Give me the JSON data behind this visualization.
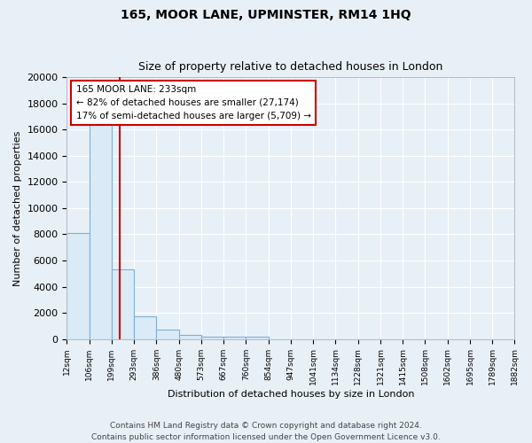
{
  "title": "165, MOOR LANE, UPMINSTER, RM14 1HQ",
  "subtitle": "Size of property relative to detached houses in London",
  "xlabel": "Distribution of detached houses by size in London",
  "ylabel": "Number of detached properties",
  "bin_edges": [
    12,
    106,
    199,
    293,
    386,
    480,
    573,
    667,
    760,
    854,
    947,
    1041,
    1134,
    1228,
    1321,
    1415,
    1508,
    1602,
    1695,
    1789,
    1882
  ],
  "bar_heights": [
    8100,
    16600,
    5300,
    1750,
    700,
    300,
    200,
    150,
    150,
    0,
    0,
    0,
    0,
    0,
    0,
    0,
    0,
    0,
    0,
    0
  ],
  "bar_color": "#daeaf6",
  "bar_edge_color": "#7fb0d5",
  "property_line_x": 233,
  "property_line_color": "#cc0000",
  "annotation_text_line1": "165 MOOR LANE: 233sqm",
  "annotation_text_line2": "← 82% of detached houses are smaller (27,174)",
  "annotation_text_line3": "17% of semi-detached houses are larger (5,709) →",
  "annotation_box_facecolor": "#ffffff",
  "annotation_box_edgecolor": "#cc0000",
  "ylim": [
    0,
    20000
  ],
  "yticks": [
    0,
    2000,
    4000,
    6000,
    8000,
    10000,
    12000,
    14000,
    16000,
    18000,
    20000
  ],
  "footer_line1": "Contains HM Land Registry data © Crown copyright and database right 2024.",
  "footer_line2": "Contains public sector information licensed under the Open Government Licence v3.0.",
  "plot_bg_color": "#e8f0f7",
  "fig_bg_color": "#e8f0f7",
  "grid_color": "#ffffff",
  "title_fontsize": 10,
  "subtitle_fontsize": 9,
  "axis_label_fontsize": 8,
  "ytick_fontsize": 8,
  "xtick_fontsize": 6.5,
  "annotation_fontsize": 7.5,
  "footer_fontsize": 6.5
}
